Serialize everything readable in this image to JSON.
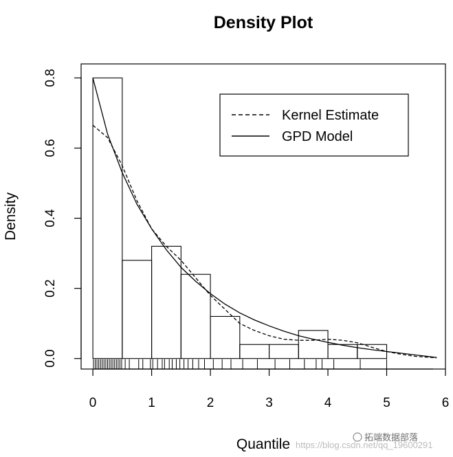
{
  "chart_data": {
    "type": "histogram",
    "title": "Density Plot",
    "xlabel": "Quantile",
    "ylabel": "Density",
    "xlim": [
      -0.2,
      6.0
    ],
    "ylim": [
      -0.03,
      0.84
    ],
    "xticks": [
      0,
      1,
      2,
      3,
      4,
      5,
      6
    ],
    "yticks": [
      0.0,
      0.2,
      0.4,
      0.6,
      0.8
    ],
    "ytick_labels": [
      "0.0",
      "0.2",
      "0.4",
      "0.6",
      "0.8"
    ],
    "grid": false,
    "histogram": {
      "bin_edges": [
        0,
        0.5,
        1.0,
        1.5,
        2.0,
        2.5,
        3.0,
        3.5,
        4.0,
        4.5,
        5.0
      ],
      "densities": [
        0.8,
        0.28,
        0.32,
        0.24,
        0.12,
        0.04,
        0.04,
        0.08,
        0.04,
        0.04
      ]
    },
    "series": [
      {
        "name": "Kernel Estimate",
        "line_style": "dashed",
        "x": [
          0.0,
          0.25,
          0.5,
          0.75,
          1.0,
          1.25,
          1.5,
          1.75,
          2.0,
          2.25,
          2.5,
          2.75,
          3.0,
          3.25,
          3.5,
          3.75,
          4.0,
          4.25,
          4.5,
          4.75,
          5.0,
          5.25,
          5.5,
          5.85
        ],
        "y": [
          0.665,
          0.63,
          0.55,
          0.45,
          0.37,
          0.32,
          0.28,
          0.23,
          0.18,
          0.14,
          0.1,
          0.08,
          0.065,
          0.055,
          0.052,
          0.052,
          0.055,
          0.052,
          0.045,
          0.032,
          0.02,
          0.012,
          0.006,
          0.002
        ]
      },
      {
        "name": "GPD Model",
        "line_style": "solid",
        "x": [
          0.0,
          0.25,
          0.5,
          0.75,
          1.0,
          1.25,
          1.5,
          1.75,
          2.0,
          2.25,
          2.5,
          2.75,
          3.0,
          3.25,
          3.5,
          3.75,
          4.0,
          4.25,
          4.5,
          4.75,
          5.0,
          5.25,
          5.5,
          5.85
        ],
        "y": [
          0.8,
          0.64,
          0.53,
          0.44,
          0.37,
          0.31,
          0.26,
          0.22,
          0.185,
          0.155,
          0.13,
          0.11,
          0.093,
          0.078,
          0.065,
          0.055,
          0.046,
          0.038,
          0.031,
          0.025,
          0.02,
          0.015,
          0.01,
          0.003
        ]
      }
    ],
    "rug": [
      0.01,
      0.04,
      0.07,
      0.1,
      0.13,
      0.16,
      0.19,
      0.22,
      0.25,
      0.28,
      0.31,
      0.34,
      0.37,
      0.4,
      0.43,
      0.46,
      0.49,
      0.55,
      0.62,
      0.78,
      0.85,
      0.98,
      1.02,
      1.1,
      1.18,
      1.22,
      1.3,
      1.35,
      1.42,
      1.48,
      1.55,
      1.62,
      1.7,
      1.8,
      1.9,
      2.05,
      2.2,
      2.35,
      2.55,
      2.8,
      3.1,
      3.35,
      3.6,
      3.8,
      3.9,
      4.1,
      4.55,
      5.0
    ],
    "legend": {
      "position": "top-right",
      "items": [
        {
          "label": "Kernel Estimate",
          "style": "dashed"
        },
        {
          "label": "GPD Model",
          "style": "solid"
        }
      ]
    }
  },
  "watermark": {
    "brand": "拓端数据部落",
    "url": "https://blog.csdn.net/qq_19600291"
  }
}
